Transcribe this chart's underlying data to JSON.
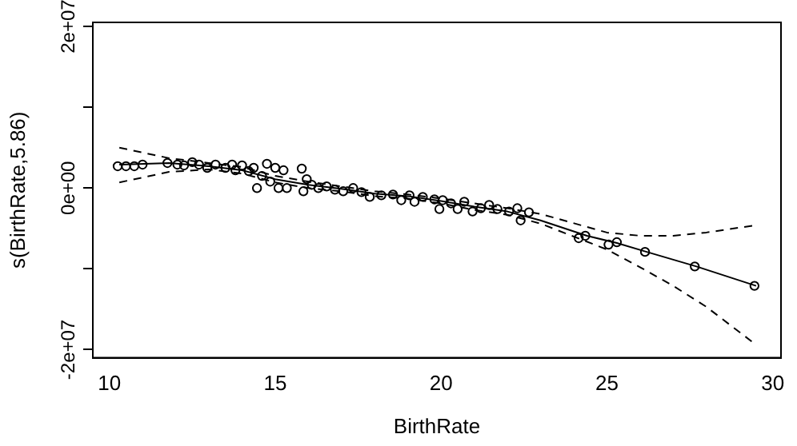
{
  "chart_data": {
    "type": "line",
    "xlabel": "BirthRate",
    "ylabel": "s(BirthRate,5.86)",
    "xlim": [
      9.5,
      30.25
    ],
    "ylim": [
      -21000000,
      20500000
    ],
    "xticks": [
      10,
      15,
      20,
      25,
      30
    ],
    "yticks": [
      {
        "value": -20000000,
        "label": "-2e+07"
      },
      {
        "value": -10000000,
        "label": null
      },
      {
        "value": 0,
        "label": "0e+00"
      },
      {
        "value": 10000000,
        "label": null
      },
      {
        "value": 20000000,
        "label": "2e+07"
      }
    ],
    "grid": false,
    "legend": false,
    "series": [
      {
        "color": "#000000",
        "line_style": "solid",
        "marker": "none",
        "x": [
          10.3,
          11.8,
          13,
          14,
          15,
          16,
          17,
          18,
          19,
          20,
          21,
          22,
          23,
          24.4,
          25.3,
          26.2,
          27.7,
          29.5
        ],
        "values": [
          2900000,
          3100000,
          2700000,
          2200000,
          1100000,
          400000,
          -100000,
          -700000,
          -1000000,
          -1600000,
          -2300000,
          -2900000,
          -4000000,
          -5900000,
          -6800000,
          -7900000,
          -9700000,
          -12100000
        ]
      },
      {
        "color": "#000000",
        "line_style": "dashed",
        "marker": "none",
        "x": [
          10.3,
          11.8,
          13,
          14,
          15,
          16,
          17,
          18,
          19,
          20,
          21,
          22,
          23,
          25,
          26,
          27,
          28,
          29.5
        ],
        "values": [
          5000000,
          3700000,
          3100000,
          2600000,
          1500000,
          800000,
          200000,
          -400000,
          -800000,
          -1300000,
          -1900000,
          -2500000,
          -3200000,
          -5500000,
          -5900000,
          -5900000,
          -5500000,
          -4600000
        ]
      },
      {
        "color": "#000000",
        "line_style": "dashed",
        "marker": "none",
        "x": [
          10.3,
          11.8,
          13,
          14,
          15,
          16,
          17,
          18,
          19,
          20,
          21,
          22,
          23,
          25,
          26,
          27,
          28,
          29.5
        ],
        "values": [
          700000,
          2000000,
          2300000,
          1800000,
          700000,
          0,
          -400000,
          -1000000,
          -1300000,
          -1900000,
          -2700000,
          -3300000,
          -4400000,
          -7600000,
          -9800000,
          -12100000,
          -14700000,
          -19400000
        ]
      },
      {
        "type": "scatter",
        "color": "#000000",
        "marker": "circle",
        "x": [
          10.25,
          10.5,
          10.75,
          11,
          11.75,
          12.05,
          12.25,
          12.5,
          12.7,
          12.95,
          13.2,
          13.5,
          13.7,
          13.8,
          14,
          14.2,
          14.35,
          14.45,
          14.6,
          14.75,
          14.85,
          15,
          15.1,
          15.25,
          15.35,
          15.8,
          15.85,
          15.95,
          16.1,
          16.3,
          16.55,
          16.8,
          17.05,
          17.35,
          17.6,
          17.85,
          18.2,
          18.55,
          18.8,
          19.05,
          19.2,
          19.45,
          19.8,
          19.95,
          20.05,
          20.3,
          20.5,
          20.7,
          20.95,
          21.2,
          21.45,
          21.7,
          22.05,
          22.3,
          22.4,
          22.65,
          24.15,
          24.35,
          25.05,
          25.3,
          26.15,
          27.65,
          29.45
        ],
        "values": [
          2700000,
          2700000,
          2700000,
          2900000,
          3100000,
          2900000,
          2800000,
          3200000,
          2900000,
          2500000,
          2900000,
          2500000,
          2900000,
          2200000,
          2800000,
          2100000,
          2500000,
          0,
          1500000,
          3000000,
          800000,
          2500000,
          0,
          2200000,
          0,
          2400000,
          -400000,
          1100000,
          400000,
          0,
          200000,
          -200000,
          -400000,
          0,
          -500000,
          -1100000,
          -900000,
          -800000,
          -1500000,
          -900000,
          -1700000,
          -1100000,
          -1400000,
          -2600000,
          -1500000,
          -1900000,
          -2600000,
          -1700000,
          -2900000,
          -2500000,
          -2100000,
          -2600000,
          -2900000,
          -2500000,
          -4000000,
          -3000000,
          -6200000,
          -5900000,
          -7000000,
          -6700000,
          -7900000,
          -9700000,
          -12100000
        ]
      }
    ]
  }
}
